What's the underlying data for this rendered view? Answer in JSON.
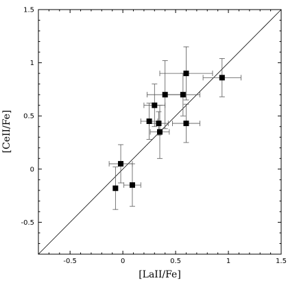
{
  "chart_data": {
    "type": "scatter",
    "title": "",
    "xlabel": "[LaII/Fe]",
    "ylabel": "[CeII/Fe]",
    "xlim": [
      -0.8,
      1.5
    ],
    "ylim": [
      -0.8,
      1.5
    ],
    "xticks": [
      "-0.5",
      "0",
      "0.5",
      "1",
      "1.5"
    ],
    "yticks": [
      "-0.5",
      "0",
      "0.5",
      "1",
      "1.5"
    ],
    "grid": false,
    "legend": "none",
    "reference_line": {
      "x": [
        -0.8,
        1.5
      ],
      "y": [
        -0.8,
        1.5
      ],
      "label": ""
    },
    "marker": "filled-square",
    "colors": {
      "points": "#000000",
      "errorbars": "#555555",
      "line": "#000000"
    },
    "points": [
      {
        "x": -0.07,
        "y": -0.18,
        "xerr": 0.0,
        "yerr": 0.2
      },
      {
        "x": -0.02,
        "y": 0.05,
        "xerr": 0.11,
        "yerr": 0.18
      },
      {
        "x": 0.09,
        "y": -0.15,
        "xerr": 0.08,
        "yerr": 0.2
      },
      {
        "x": 0.25,
        "y": 0.45,
        "xerr": 0.08,
        "yerr": 0.17
      },
      {
        "x": 0.3,
        "y": 0.6,
        "xerr": 0.1,
        "yerr": 0.2
      },
      {
        "x": 0.34,
        "y": 0.43,
        "xerr": 0.09,
        "yerr": 0.11
      },
      {
        "x": 0.35,
        "y": 0.35,
        "xerr": 0.09,
        "yerr": 0.25
      },
      {
        "x": 0.4,
        "y": 0.7,
        "xerr": 0.17,
        "yerr": 0.32
      },
      {
        "x": 0.57,
        "y": 0.7,
        "xerr": 0.16,
        "yerr": 0.2
      },
      {
        "x": 0.6,
        "y": 0.9,
        "xerr": 0.25,
        "yerr": 0.25
      },
      {
        "x": 0.6,
        "y": 0.43,
        "xerr": 0.13,
        "yerr": 0.18
      },
      {
        "x": 0.94,
        "y": 0.86,
        "xerr": 0.18,
        "yerr": 0.18
      }
    ]
  }
}
